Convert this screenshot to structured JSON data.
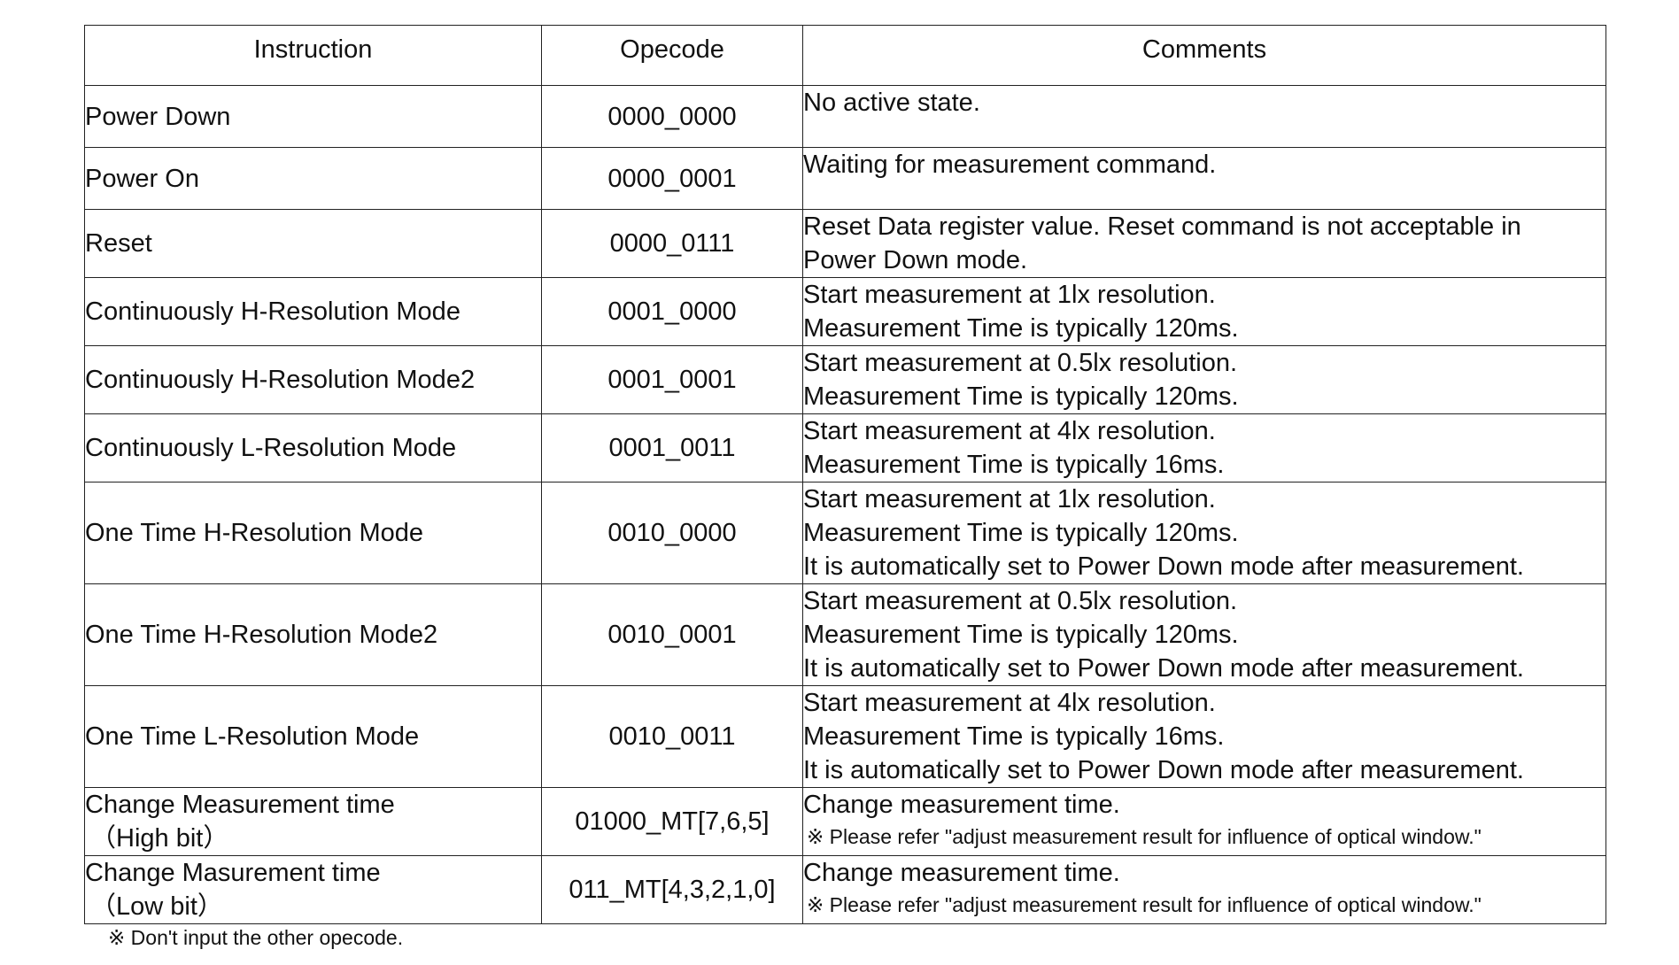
{
  "table": {
    "headers": [
      "Instruction",
      "Opecode",
      "Comments"
    ],
    "rows": [
      {
        "instruction": [
          "Power Down"
        ],
        "opecode": "0000_0000",
        "comments": [
          "No active state."
        ],
        "notes": []
      },
      {
        "instruction": [
          "Power On"
        ],
        "opecode": "0000_0001",
        "comments": [
          "Waiting for measurement command."
        ],
        "notes": []
      },
      {
        "instruction": [
          "Reset"
        ],
        "opecode": "0000_0111",
        "comments": [
          "Reset Data register value. Reset command is not acceptable in",
          "Power Down mode."
        ],
        "notes": []
      },
      {
        "instruction": [
          "Continuously H-Resolution Mode"
        ],
        "opecode": "0001_0000",
        "comments": [
          "Start measurement at 1lx resolution.",
          "Measurement Time is typically 120ms."
        ],
        "notes": []
      },
      {
        "instruction": [
          "Continuously H-Resolution Mode2"
        ],
        "opecode": "0001_0001",
        "comments": [
          "Start measurement at 0.5lx resolution.",
          "Measurement Time is typically 120ms."
        ],
        "notes": []
      },
      {
        "instruction": [
          "Continuously L-Resolution Mode"
        ],
        "opecode": "0001_0011",
        "comments": [
          "Start measurement at 4lx resolution.",
          "Measurement Time is typically 16ms."
        ],
        "notes": []
      },
      {
        "instruction": [
          "One Time H-Resolution Mode"
        ],
        "opecode": "0010_0000",
        "comments": [
          "Start measurement at 1lx resolution.",
          "Measurement Time is typically 120ms.",
          "It is automatically set to Power Down mode after measurement."
        ],
        "notes": []
      },
      {
        "instruction": [
          "One Time H-Resolution Mode2"
        ],
        "opecode": "0010_0001",
        "comments": [
          "Start measurement at 0.5lx resolution.",
          "Measurement Time is typically 120ms.",
          "It is automatically set to Power Down mode after measurement."
        ],
        "notes": []
      },
      {
        "instruction": [
          "One Time L-Resolution Mode"
        ],
        "opecode": "0010_0011",
        "comments": [
          "Start measurement at 4lx resolution.",
          "Measurement Time is typically 16ms.",
          "It is automatically set to Power Down mode after measurement."
        ],
        "notes": []
      },
      {
        "instruction": [
          "Change Measurement time",
          "（High bit）"
        ],
        "opecode": "01000_MT[7,6,5]",
        "comments": [
          "Change measurement time."
        ],
        "notes": [
          "※ Please refer \"adjust measurement result for influence of optical window.\""
        ]
      },
      {
        "instruction": [
          "Change Masurement time",
          "（Low bit）"
        ],
        "opecode": "011_MT[4,3,2,1,0]",
        "comments": [
          "Change measurement time."
        ],
        "notes": [
          "※ Please refer \"adjust measurement result for influence of optical window.\""
        ]
      }
    ]
  },
  "footnote": "※ Don't input the other opecode."
}
